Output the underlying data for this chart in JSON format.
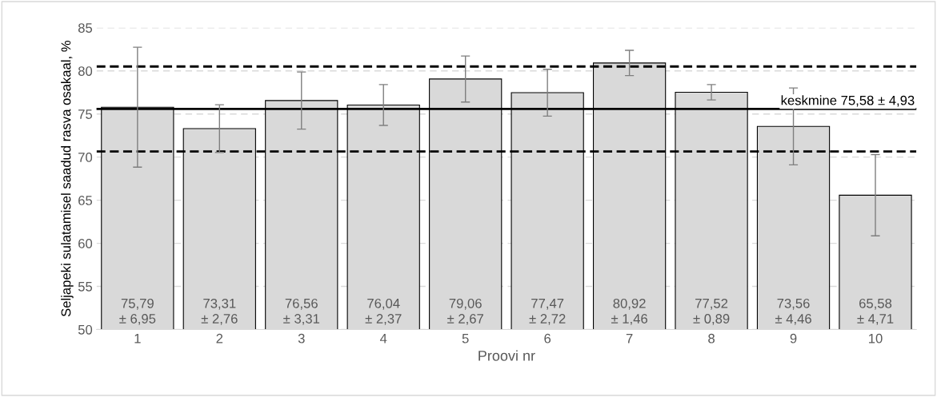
{
  "chart_data": {
    "type": "bar",
    "xlabel": "Proovi nr",
    "ylabel": "Seljapeki sulatamisel saadud rasva osakaal, %",
    "categories": [
      "1",
      "2",
      "3",
      "4",
      "5",
      "6",
      "7",
      "8",
      "9",
      "10"
    ],
    "values": [
      75.79,
      73.31,
      76.56,
      76.04,
      79.06,
      77.47,
      80.92,
      77.52,
      73.56,
      65.58
    ],
    "errors": [
      6.95,
      2.76,
      3.31,
      2.37,
      2.67,
      2.72,
      1.46,
      0.89,
      4.46,
      4.71
    ],
    "value_labels": [
      "75,79\n± 6,95",
      "73,31\n± 2,76",
      "76,56\n± 3,31",
      "76,04\n± 2,37",
      "79,06\n± 2,67",
      "77,47\n± 2,72",
      "80,92\n± 1,46",
      "77,52\n± 0,89",
      "73,56\n± 4,46",
      "65,58\n± 4,71"
    ],
    "color": "#d9d9d9",
    "ylim": [
      50,
      85
    ],
    "yticks": [
      50,
      55,
      60,
      65,
      70,
      75,
      80,
      85
    ],
    "grid": "y",
    "ref_lines": [
      {
        "axis": "y",
        "value": 75.58,
        "label": "keskmine 75,58 ± 4,93",
        "color": "#000000",
        "line_style": "solid"
      },
      {
        "axis": "y",
        "value": 80.51,
        "label": null,
        "color": "#000000",
        "line_style": "dashed"
      },
      {
        "axis": "y",
        "value": 70.65,
        "label": null,
        "color": "#000000",
        "line_style": "dashed"
      }
    ]
  }
}
